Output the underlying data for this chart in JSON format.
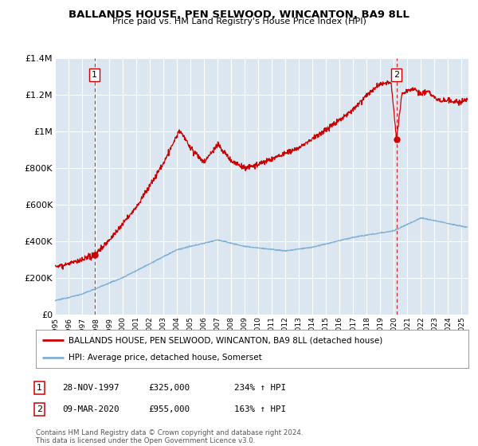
{
  "title": "BALLANDS HOUSE, PEN SELWOOD, WINCANTON, BA9 8LL",
  "subtitle": "Price paid vs. HM Land Registry's House Price Index (HPI)",
  "bg_color": "#dce6f0",
  "fig_bg_color": "#ffffff",
  "red_line_color": "#cc0000",
  "blue_line_color": "#7eafd4",
  "grid_color": "#ffffff",
  "dashed_line_color": "#cc0000",
  "ylim": [
    0,
    1400000
  ],
  "yticks": [
    0,
    200000,
    400000,
    600000,
    800000,
    1000000,
    1200000,
    1400000
  ],
  "ytick_labels": [
    "£0",
    "£200K",
    "£400K",
    "£600K",
    "£800K",
    "£1M",
    "£1.2M",
    "£1.4M"
  ],
  "sale1_date": 1997.91,
  "sale1_price": 325000,
  "sale1_label": "1",
  "sale2_date": 2020.19,
  "sale2_price": 955000,
  "sale2_label": "2",
  "legend_line1": "BALLANDS HOUSE, PEN SELWOOD, WINCANTON, BA9 8LL (detached house)",
  "legend_line2": "HPI: Average price, detached house, Somerset",
  "table_row1": [
    "1",
    "28-NOV-1997",
    "£325,000",
    "234% ↑ HPI"
  ],
  "table_row2": [
    "2",
    "09-MAR-2020",
    "£955,000",
    "163% ↑ HPI"
  ],
  "footer": "Contains HM Land Registry data © Crown copyright and database right 2024.\nThis data is licensed under the Open Government Licence v3.0.",
  "xstart": 1995.0,
  "xend": 2025.5
}
